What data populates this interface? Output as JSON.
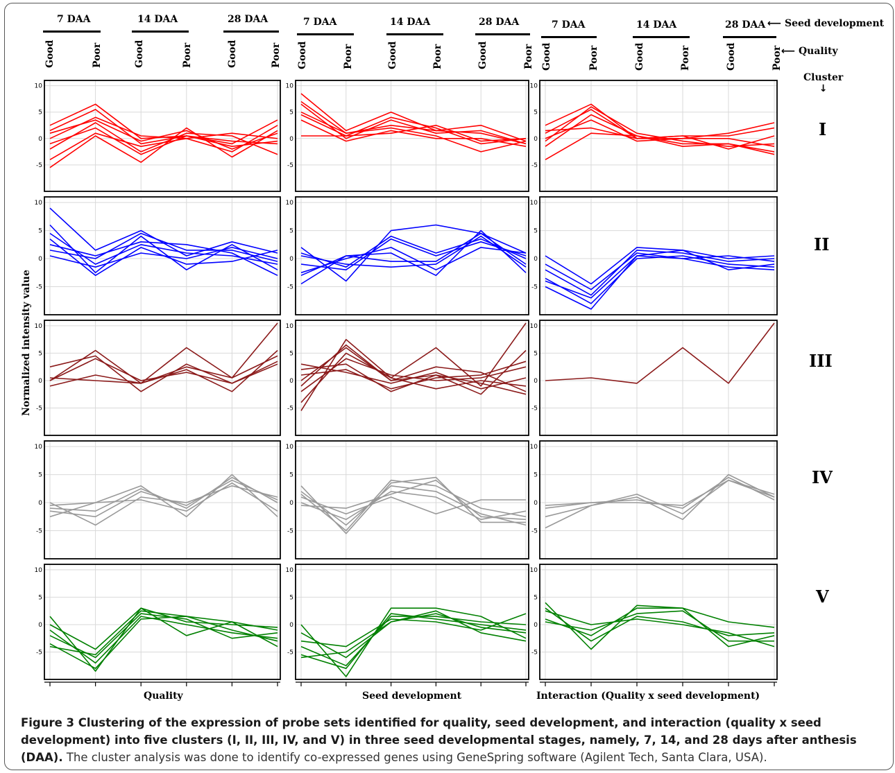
{
  "header": {
    "stages": [
      "7 DAA",
      "14 DAA",
      "28 DAA"
    ],
    "stage_row_label": "Seed development",
    "quality_labels": [
      "Good",
      "Poor"
    ],
    "quality_row_label": "Quality",
    "cluster_label": "Cluster"
  },
  "y_axis_label": "Normalized intensity value",
  "column_titles": [
    "Quality",
    "Seed development",
    "Interaction (Quality x seed development)"
  ],
  "cluster_names": [
    "I",
    "II",
    "III",
    "IV",
    "V"
  ],
  "caption": {
    "bold": "Figure 3 Clustering of the expression of probe sets identified for quality, seed development, and interaction (quality x seed development) into five clusters (I, II, III, IV, and V) in three seed developmental stages, namely, 7, 14, and 28 days after anthesis (DAA).",
    "normal": " The cluster analysis was done to identify co-expressed genes using GeneSpring software (Agilent Tech, Santa Clara, USA)."
  },
  "chart_data": {
    "type": "line",
    "x": [
      "7 DAA Good",
      "7 DAA Poor",
      "14 DAA Good",
      "14 DAA Poor",
      "28 DAA Good",
      "28 DAA Poor"
    ],
    "yticks": [
      -5,
      0,
      5,
      10
    ],
    "ylim": [
      -10,
      11
    ],
    "colors": {
      "I": "#ff0000",
      "II": "#0000ff",
      "III": "#8b1a1a",
      "IV": "#999999",
      "V": "#008000"
    },
    "panels": [
      {
        "cluster": "I",
        "column": "Quality",
        "series": [
          [
            2.5,
            6.5,
            0.0,
            0.5,
            -1.0,
            3.5
          ],
          [
            -5.5,
            0.5,
            -4.5,
            2.0,
            -3.5,
            1.5
          ],
          [
            1.5,
            5.5,
            -1.0,
            0.5,
            -1.5,
            -0.5
          ],
          [
            -2.0,
            3.0,
            -2.5,
            1.0,
            0.5,
            -3.0
          ],
          [
            -4.0,
            1.0,
            -1.5,
            0.0,
            -2.5,
            2.5
          ],
          [
            0.0,
            4.0,
            0.5,
            0.0,
            1.0,
            0.0
          ],
          [
            -1.0,
            2.0,
            -3.0,
            0.5,
            -0.5,
            -1.0
          ],
          [
            1.0,
            3.5,
            -0.5,
            1.5,
            -2.0,
            1.0
          ]
        ]
      },
      {
        "cluster": "I",
        "column": "Seed development",
        "series": [
          [
            8.5,
            1.5,
            5.0,
            1.5,
            2.5,
            -0.5
          ],
          [
            0.5,
            0.5,
            1.0,
            2.5,
            -0.5,
            0.0
          ],
          [
            6.5,
            0.0,
            3.5,
            1.0,
            1.5,
            -1.0
          ],
          [
            5.0,
            1.0,
            2.0,
            0.5,
            -2.5,
            -0.5
          ],
          [
            3.5,
            -0.5,
            1.5,
            0.0,
            0.0,
            -1.5
          ],
          [
            4.5,
            0.5,
            4.0,
            2.0,
            -1.0,
            0.0
          ],
          [
            7.0,
            1.0,
            2.5,
            1.5,
            1.0,
            -1.0
          ]
        ]
      },
      {
        "cluster": "I",
        "column": "Interaction (Quality x seed development)",
        "series": [
          [
            2.5,
            6.5,
            0.0,
            0.0,
            1.0,
            3.0
          ],
          [
            -4.0,
            1.0,
            0.5,
            -1.5,
            -1.0,
            -3.0
          ],
          [
            1.0,
            5.5,
            0.0,
            0.5,
            -2.0,
            0.5
          ],
          [
            0.0,
            3.5,
            -0.5,
            0.0,
            0.0,
            -1.5
          ],
          [
            -1.5,
            4.5,
            0.5,
            -1.0,
            -1.0,
            -2.5
          ],
          [
            1.5,
            2.0,
            0.0,
            0.5,
            0.5,
            2.0
          ],
          [
            -0.5,
            6.0,
            1.0,
            -0.5,
            -1.5,
            -1.0
          ]
        ]
      },
      {
        "cluster": "II",
        "column": "Quality",
        "series": [
          [
            9.0,
            1.5,
            5.0,
            0.5,
            3.0,
            1.0
          ],
          [
            6.0,
            -2.5,
            4.0,
            -2.0,
            2.5,
            -2.0
          ],
          [
            4.5,
            -1.0,
            2.5,
            1.0,
            0.5,
            -1.0
          ],
          [
            2.5,
            0.5,
            3.0,
            2.5,
            1.0,
            -3.0
          ],
          [
            0.5,
            -1.5,
            1.0,
            0.0,
            2.0,
            0.0
          ],
          [
            3.5,
            -3.0,
            2.0,
            -1.0,
            -0.5,
            1.5
          ],
          [
            1.5,
            0.0,
            4.5,
            1.5,
            1.5,
            -0.5
          ]
        ]
      },
      {
        "cluster": "II",
        "column": "Seed development",
        "series": [
          [
            2.0,
            -4.0,
            5.0,
            6.0,
            4.5,
            1.0
          ],
          [
            -4.5,
            0.5,
            1.0,
            -3.0,
            5.0,
            -2.5
          ],
          [
            -1.0,
            -2.0,
            3.5,
            0.5,
            3.0,
            0.5
          ],
          [
            0.5,
            -1.0,
            -1.5,
            -1.0,
            4.0,
            -1.5
          ],
          [
            -2.5,
            0.0,
            2.0,
            -2.0,
            2.0,
            1.0
          ],
          [
            1.0,
            -1.5,
            4.0,
            1.0,
            3.5,
            0.0
          ],
          [
            -3.0,
            0.5,
            -0.5,
            -0.5,
            4.5,
            -1.0
          ]
        ]
      },
      {
        "cluster": "II",
        "column": "Interaction (Quality x seed development)",
        "series": [
          [
            0.5,
            -4.5,
            2.0,
            1.5,
            0.0,
            0.5
          ],
          [
            -5.0,
            -9.0,
            0.5,
            0.0,
            -1.5,
            -2.0
          ],
          [
            -2.0,
            -6.5,
            1.5,
            1.0,
            -0.5,
            0.0
          ],
          [
            -3.5,
            -8.0,
            0.0,
            0.5,
            -1.0,
            -1.5
          ],
          [
            -1.0,
            -5.5,
            1.0,
            0.0,
            0.5,
            -0.5
          ],
          [
            -4.0,
            -7.0,
            0.5,
            1.5,
            -2.0,
            -1.0
          ]
        ]
      },
      {
        "cluster": "III",
        "column": "Quality",
        "series": [
          [
            0.0,
            5.5,
            -0.5,
            6.0,
            0.5,
            10.5
          ],
          [
            2.5,
            4.5,
            -2.0,
            3.0,
            -0.5,
            3.5
          ],
          [
            -1.0,
            1.0,
            -0.5,
            2.0,
            -2.0,
            5.5
          ],
          [
            0.5,
            0.0,
            -0.5,
            2.5,
            0.5,
            4.5
          ],
          [
            0.0,
            4.0,
            0.0,
            1.5,
            -0.5,
            3.0
          ]
        ]
      },
      {
        "cluster": "III",
        "column": "Seed development",
        "series": [
          [
            -5.5,
            7.5,
            0.5,
            6.0,
            -1.0,
            10.5
          ],
          [
            2.0,
            3.0,
            -2.0,
            1.0,
            -2.5,
            5.5
          ],
          [
            0.0,
            6.0,
            0.0,
            2.5,
            1.5,
            -2.0
          ],
          [
            -4.0,
            5.0,
            0.5,
            -1.5,
            0.0,
            -1.0
          ],
          [
            3.0,
            1.5,
            -0.5,
            1.5,
            -1.5,
            0.5
          ],
          [
            -2.0,
            4.0,
            1.0,
            0.0,
            0.5,
            2.5
          ],
          [
            1.0,
            2.0,
            -1.5,
            0.5,
            1.0,
            3.5
          ],
          [
            -1.0,
            6.5,
            0.0,
            1.0,
            -0.5,
            -2.5
          ]
        ]
      },
      {
        "cluster": "III",
        "column": "Interaction (Quality x seed development)",
        "series": [
          [
            0.0,
            0.5,
            -0.5,
            6.0,
            -0.5,
            10.5
          ]
        ]
      },
      {
        "cluster": "IV",
        "column": "Quality",
        "series": [
          [
            -2.5,
            0.0,
            3.0,
            -2.5,
            5.0,
            -2.5
          ],
          [
            0.0,
            -4.0,
            1.0,
            0.0,
            3.0,
            1.0
          ],
          [
            -1.0,
            -1.5,
            2.5,
            -1.0,
            4.5,
            0.0
          ],
          [
            -0.5,
            0.0,
            0.5,
            -1.5,
            3.5,
            -1.5
          ],
          [
            -1.5,
            -2.5,
            2.0,
            -0.5,
            4.0,
            0.5
          ]
        ]
      },
      {
        "cluster": "IV",
        "column": "Seed development",
        "series": [
          [
            3.0,
            -5.5,
            3.5,
            4.5,
            -3.5,
            -3.5
          ],
          [
            1.0,
            -2.0,
            1.0,
            -2.0,
            0.5,
            0.5
          ],
          [
            2.0,
            -4.0,
            3.0,
            2.0,
            -2.0,
            -4.0
          ],
          [
            0.0,
            -3.0,
            2.0,
            1.0,
            -3.0,
            -1.5
          ],
          [
            1.5,
            -5.0,
            4.0,
            3.0,
            -1.0,
            -2.5
          ],
          [
            -0.5,
            -1.0,
            1.5,
            4.0,
            -2.5,
            -3.0
          ]
        ]
      },
      {
        "cluster": "IV",
        "column": "Interaction (Quality x seed development)",
        "series": [
          [
            -4.5,
            -0.5,
            1.0,
            -3.0,
            5.0,
            1.0
          ],
          [
            -1.0,
            0.0,
            0.5,
            -1.0,
            4.5,
            0.5
          ],
          [
            -2.5,
            -0.5,
            1.5,
            -2.0,
            4.0,
            1.5
          ],
          [
            -0.5,
            0.0,
            0.0,
            -0.5,
            4.0,
            1.0
          ]
        ]
      },
      {
        "cluster": "V",
        "column": "Quality",
        "series": [
          [
            1.5,
            -8.5,
            3.0,
            -2.0,
            0.5,
            -4.0
          ],
          [
            -2.0,
            -6.0,
            2.0,
            1.0,
            -2.5,
            -1.5
          ],
          [
            -3.5,
            -8.0,
            1.0,
            1.5,
            -1.0,
            -3.0
          ],
          [
            0.0,
            -4.5,
            3.0,
            0.5,
            0.0,
            -0.5
          ],
          [
            -1.0,
            -7.0,
            1.5,
            0.0,
            -1.5,
            -2.5
          ],
          [
            -4.0,
            -5.5,
            2.5,
            1.5,
            0.5,
            -1.0
          ]
        ]
      },
      {
        "cluster": "V",
        "column": "Seed development",
        "series": [
          [
            0.0,
            -9.5,
            3.0,
            3.0,
            1.5,
            -2.5
          ],
          [
            -3.0,
            -4.0,
            1.0,
            0.5,
            -1.0,
            2.0
          ],
          [
            -5.5,
            -8.0,
            2.0,
            1.0,
            0.0,
            -1.0
          ],
          [
            -1.5,
            -6.0,
            0.5,
            2.5,
            -1.5,
            -3.0
          ],
          [
            -4.0,
            -7.5,
            1.5,
            1.5,
            0.5,
            0.0
          ],
          [
            -6.0,
            -5.0,
            0.5,
            2.0,
            -0.5,
            -1.5
          ]
        ]
      },
      {
        "cluster": "V",
        "column": "Interaction (Quality x seed development)",
        "series": [
          [
            4.0,
            -4.5,
            3.5,
            3.0,
            -4.0,
            -2.0
          ],
          [
            2.5,
            0.0,
            1.0,
            0.0,
            -1.5,
            -4.0
          ],
          [
            1.0,
            -2.0,
            3.0,
            3.0,
            0.5,
            -0.5
          ],
          [
            0.5,
            -1.0,
            2.0,
            2.5,
            -3.0,
            -3.0
          ],
          [
            3.0,
            -3.0,
            1.5,
            0.5,
            -2.0,
            -1.5
          ]
        ]
      }
    ]
  }
}
